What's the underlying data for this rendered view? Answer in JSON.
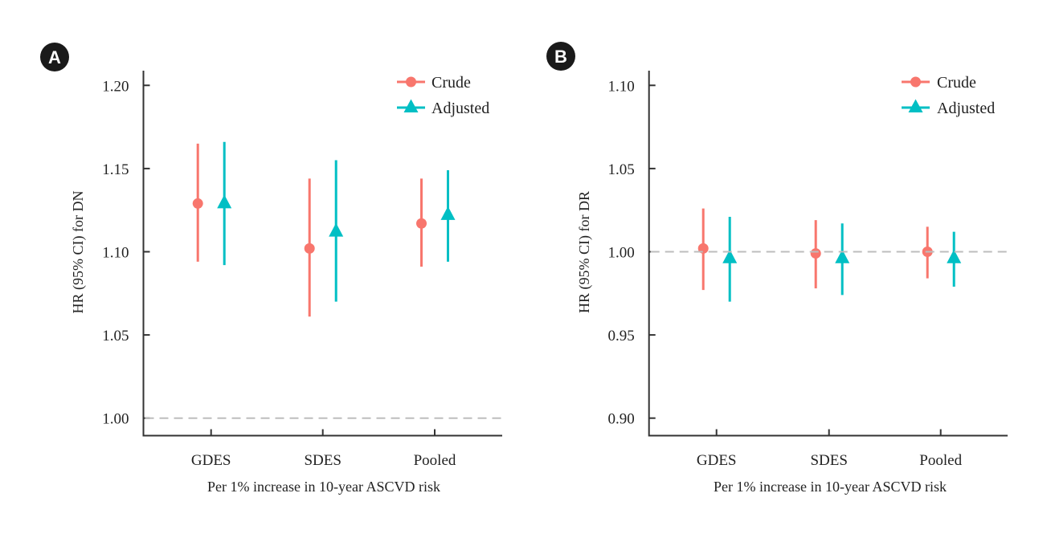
{
  "chart_data": [
    {
      "panel_label": "A",
      "type": "scatter",
      "subtype": "point-range",
      "ylabel": "HR (95% CI) for DN",
      "xlabel": "Per 1% increase in 10-year ASCVD risk",
      "categories": [
        "GDES",
        "SDES",
        "Pooled"
      ],
      "ylim": [
        0.99,
        1.21
      ],
      "yticks": [
        1.0,
        1.05,
        1.1,
        1.15,
        1.2
      ],
      "ytick_labels": [
        "1.00",
        "1.05",
        "1.10",
        "1.15",
        "1.20"
      ],
      "reference_line": 1.0,
      "legend_position": "top-right",
      "grid": false,
      "series": [
        {
          "name": "Crude",
          "marker": "circle",
          "color": "#F8766D",
          "estimate": [
            1.129,
            1.102,
            1.117
          ],
          "lower": [
            1.094,
            1.061,
            1.091
          ],
          "upper": [
            1.165,
            1.144,
            1.144
          ]
        },
        {
          "name": "Adjusted",
          "marker": "triangle",
          "color": "#00BFC4",
          "estimate": [
            1.129,
            1.112,
            1.122
          ],
          "lower": [
            1.092,
            1.07,
            1.094
          ],
          "upper": [
            1.166,
            1.155,
            1.149
          ]
        }
      ]
    },
    {
      "panel_label": "B",
      "type": "scatter",
      "subtype": "point-range",
      "ylabel": "HR (95% CI) for DR",
      "xlabel": "Per 1% increase in 10-year ASCVD risk",
      "categories": [
        "GDES",
        "SDES",
        "Pooled"
      ],
      "ylim": [
        0.89,
        1.11
      ],
      "yticks": [
        0.9,
        0.95,
        1.0,
        1.05,
        1.1
      ],
      "ytick_labels": [
        "0.90",
        "0.95",
        "1.00",
        "1.05",
        "1.10"
      ],
      "reference_line": 1.0,
      "legend_position": "top-right",
      "grid": false,
      "series": [
        {
          "name": "Crude",
          "marker": "circle",
          "color": "#F8766D",
          "estimate": [
            1.002,
            0.999,
            1.0
          ],
          "lower": [
            0.977,
            0.978,
            0.984
          ],
          "upper": [
            1.026,
            1.019,
            1.015
          ]
        },
        {
          "name": "Adjusted",
          "marker": "triangle",
          "color": "#00BFC4",
          "estimate": [
            0.996,
            0.996,
            0.996
          ],
          "lower": [
            0.97,
            0.974,
            0.979
          ],
          "upper": [
            1.021,
            1.017,
            1.012
          ]
        }
      ]
    }
  ],
  "colors": {
    "reference_line": "#BDBDBD",
    "axis": "#333333",
    "badge": "#1a1a1a"
  }
}
